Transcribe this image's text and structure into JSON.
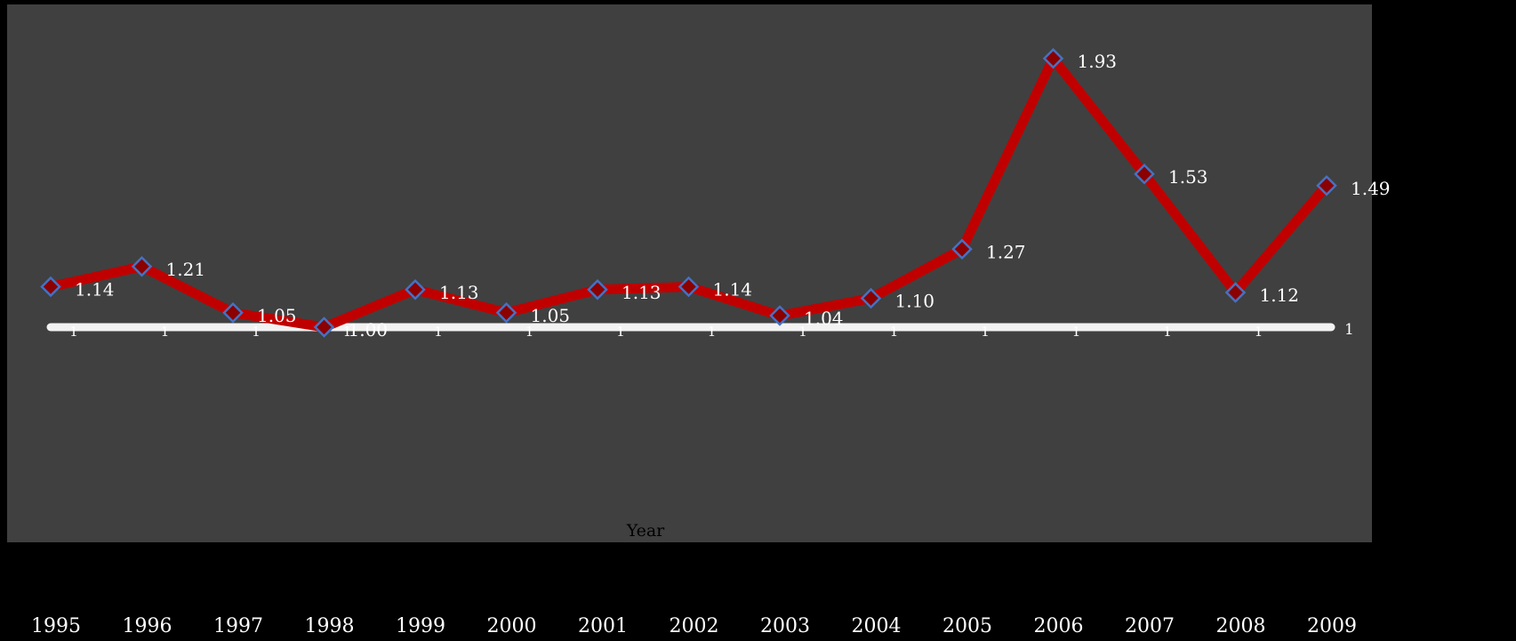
{
  "chart_data": {
    "type": "line",
    "title": "",
    "xlabel": "Year",
    "ylabel": "",
    "grid": false,
    "legend": "none",
    "categories": [
      "1995",
      "1996",
      "1997",
      "1998",
      "1999",
      "2000",
      "2001",
      "2002",
      "2003",
      "2004",
      "2005",
      "2006",
      "2007",
      "2008",
      "2009"
    ],
    "series": [
      {
        "values": [
          1.14,
          1.21,
          1.05,
          1.0,
          1.13,
          1.05,
          1.13,
          1.14,
          1.04,
          1.1,
          1.27,
          1.93,
          1.53,
          1.12,
          1.49
        ],
        "labels": [
          "1.14",
          "1.21",
          "1.05",
          "1.00",
          "1.13",
          "1.05",
          "1.13",
          "1.14",
          "1.04",
          "1.10",
          "1.27",
          "1.93",
          "1.53",
          "1.12",
          "1.49"
        ],
        "line_color": "#C00000",
        "marker": "diamond",
        "marker_fill": "#8B0000",
        "marker_edge": "#4472C4"
      },
      {
        "values": [
          1,
          1,
          1,
          1,
          1,
          1,
          1,
          1,
          1,
          1,
          1,
          1,
          1,
          1,
          1
        ],
        "end_label": "1",
        "point_label": "1",
        "line_color": "#F2F2F2"
      }
    ],
    "ylim": [
      0.43,
      2.49
    ],
    "colors": {
      "background": "#000000",
      "plot_area": "#404040",
      "text": "#FFFFFF",
      "axis_title": "#000000"
    }
  }
}
